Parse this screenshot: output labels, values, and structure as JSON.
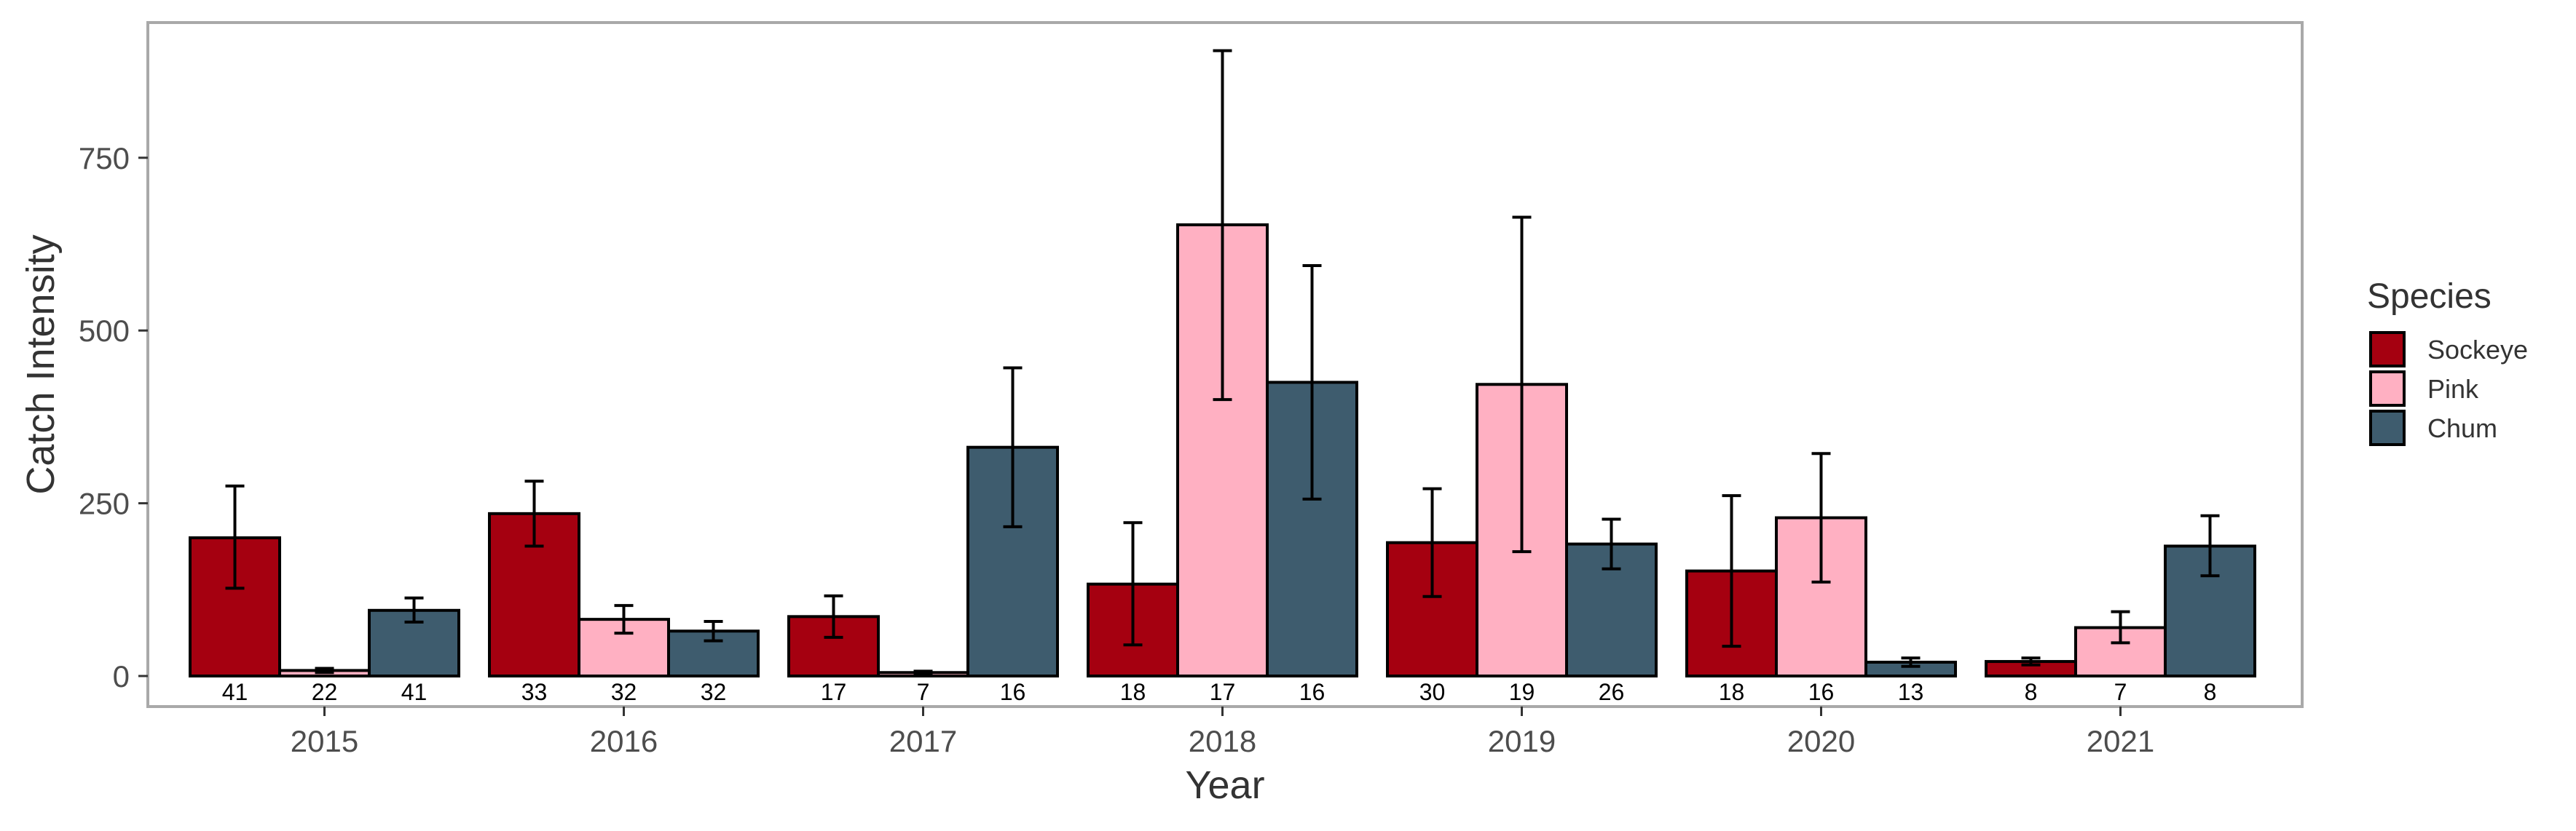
{
  "chart_data": {
    "type": "bar",
    "title": "",
    "xlabel": "Year",
    "ylabel": "Catch Intensity",
    "ylim": [
      -40,
      950
    ],
    "yticks": [
      0,
      250,
      500,
      750
    ],
    "categories": [
      "2015",
      "2016",
      "2017",
      "2018",
      "2019",
      "2020",
      "2021"
    ],
    "legend": {
      "title": "Species",
      "placement": "right"
    },
    "grid": false,
    "series": [
      {
        "name": "Sockeye",
        "color": "#a50010",
        "values": [
          200,
          235,
          86,
          133,
          193,
          152,
          21
        ],
        "err_low": [
          127,
          188,
          56,
          45,
          115,
          43,
          16
        ],
        "err_high": [
          275,
          282,
          116,
          222,
          271,
          261,
          26
        ],
        "n_labels": [
          "41",
          "33",
          "17",
          "18",
          "30",
          "18",
          "8"
        ]
      },
      {
        "name": "Pink",
        "color": "#ffb0c2",
        "values": [
          8,
          82,
          5,
          653,
          422,
          229,
          70
        ],
        "err_low": [
          5,
          62,
          3,
          400,
          180,
          136,
          48
        ],
        "err_high": [
          11,
          102,
          7,
          905,
          664,
          322,
          93
        ],
        "n_labels": [
          "22",
          "32",
          "7",
          "17",
          "19",
          "16",
          "7"
        ]
      },
      {
        "name": "Chum",
        "color": "#3e5c6e",
        "values": [
          95,
          65,
          331,
          425,
          191,
          20,
          188
        ],
        "err_low": [
          78,
          51,
          216,
          256,
          155,
          14,
          145
        ],
        "err_high": [
          113,
          79,
          446,
          594,
          227,
          26,
          232
        ],
        "n_labels": [
          "41",
          "32",
          "16",
          "16",
          "26",
          "13",
          "8"
        ]
      }
    ]
  }
}
